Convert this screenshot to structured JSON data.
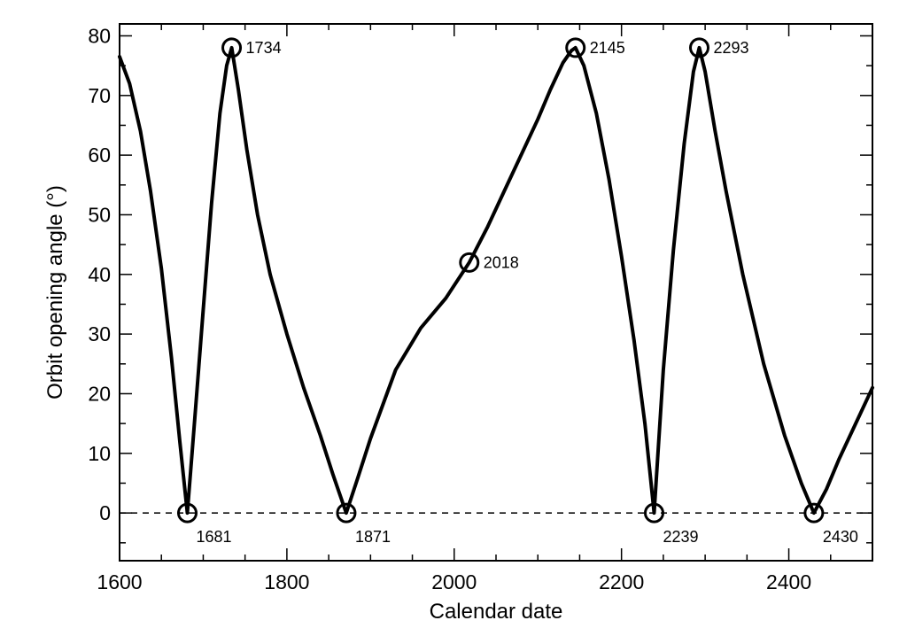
{
  "chart_data": {
    "type": "line",
    "title": "",
    "xlabel": "Calendar date",
    "ylabel": "Orbit opening angle (°)",
    "xlim": [
      1600,
      2500
    ],
    "ylim": [
      -8,
      82
    ],
    "x_ticks": [
      1600,
      1800,
      2000,
      2200,
      2400
    ],
    "y_ticks": [
      0,
      10,
      20,
      30,
      40,
      50,
      60,
      70,
      80
    ],
    "grid": false,
    "reference_line": {
      "y": 0,
      "style": "dashed"
    },
    "series": [
      {
        "values_xy": [
          [
            1600,
            76.5
          ],
          [
            1612,
            72
          ],
          [
            1625,
            64
          ],
          [
            1637,
            54
          ],
          [
            1650,
            41
          ],
          [
            1662,
            26
          ],
          [
            1672,
            12
          ],
          [
            1681,
            0
          ],
          [
            1690,
            16
          ],
          [
            1700,
            34
          ],
          [
            1710,
            52
          ],
          [
            1720,
            67
          ],
          [
            1728,
            75
          ],
          [
            1734,
            78
          ],
          [
            1742,
            71
          ],
          [
            1752,
            61
          ],
          [
            1765,
            50
          ],
          [
            1780,
            40
          ],
          [
            1800,
            30
          ],
          [
            1820,
            21
          ],
          [
            1840,
            13
          ],
          [
            1855,
            6.5
          ],
          [
            1871,
            0
          ],
          [
            1885,
            6
          ],
          [
            1900,
            12.5
          ],
          [
            1930,
            24
          ],
          [
            1960,
            31
          ],
          [
            1990,
            36
          ],
          [
            2018,
            42
          ],
          [
            2040,
            48
          ],
          [
            2060,
            54
          ],
          [
            2080,
            60
          ],
          [
            2100,
            66
          ],
          [
            2115,
            71
          ],
          [
            2130,
            75.5
          ],
          [
            2140,
            77.5
          ],
          [
            2145,
            78
          ],
          [
            2155,
            75
          ],
          [
            2170,
            67
          ],
          [
            2185,
            56
          ],
          [
            2200,
            43
          ],
          [
            2215,
            29
          ],
          [
            2228,
            15
          ],
          [
            2239,
            0
          ],
          [
            2250,
            24
          ],
          [
            2262,
            44
          ],
          [
            2275,
            62
          ],
          [
            2286,
            74
          ],
          [
            2293,
            78
          ],
          [
            2300,
            74
          ],
          [
            2312,
            64
          ],
          [
            2325,
            54
          ],
          [
            2345,
            40
          ],
          [
            2370,
            25
          ],
          [
            2395,
            13
          ],
          [
            2415,
            5
          ],
          [
            2430,
            0
          ],
          [
            2445,
            4
          ],
          [
            2460,
            9
          ],
          [
            2480,
            15
          ],
          [
            2500,
            21
          ]
        ]
      }
    ],
    "marked_points": [
      {
        "x": 1681,
        "y": 0,
        "label": "1681"
      },
      {
        "x": 1734,
        "y": 78,
        "label": "1734"
      },
      {
        "x": 1871,
        "y": 0,
        "label": "1871"
      },
      {
        "x": 2018,
        "y": 42,
        "label": "2018"
      },
      {
        "x": 2145,
        "y": 78,
        "label": "2145"
      },
      {
        "x": 2239,
        "y": 0,
        "label": "2239"
      },
      {
        "x": 2293,
        "y": 78,
        "label": "2293"
      },
      {
        "x": 2430,
        "y": 0,
        "label": "2430"
      }
    ]
  }
}
